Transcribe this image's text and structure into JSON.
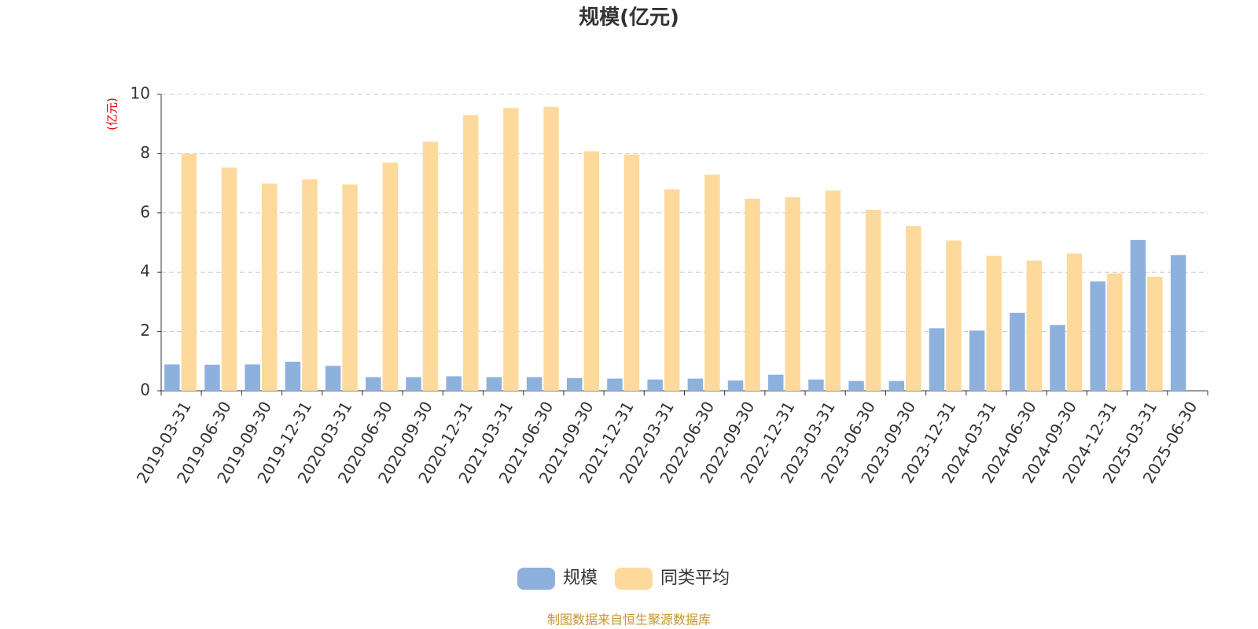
{
  "chart_data": {
    "type": "bar",
    "title": "规模(亿元)",
    "y_axis_label": "(亿元)",
    "source": "制图数据来自恒生聚源数据库",
    "categories": [
      "2019-03-31",
      "2019-06-30",
      "2019-09-30",
      "2019-12-31",
      "2020-03-31",
      "2020-06-30",
      "2020-09-30",
      "2020-12-31",
      "2021-03-31",
      "2021-06-30",
      "2021-09-30",
      "2021-12-31",
      "2022-03-31",
      "2022-06-30",
      "2022-09-30",
      "2022-12-31",
      "2023-03-31",
      "2023-06-30",
      "2023-09-30",
      "2023-12-31",
      "2024-03-31",
      "2024-06-30",
      "2024-09-30",
      "2024-12-31",
      "2025-03-31",
      "2025-06-30"
    ],
    "series": [
      {
        "name": "规模",
        "color": "#8eb0dc",
        "values": [
          0.89,
          0.88,
          0.89,
          0.98,
          0.84,
          0.46,
          0.46,
          0.49,
          0.46,
          0.46,
          0.43,
          0.41,
          0.38,
          0.41,
          0.35,
          0.54,
          0.38,
          0.33,
          0.33,
          2.11,
          2.03,
          2.63,
          2.22,
          3.69,
          5.09,
          4.58
        ]
      },
      {
        "name": "同类平均",
        "color": "#fdd99b",
        "values": [
          7.99,
          7.53,
          6.99,
          7.13,
          6.96,
          7.7,
          8.4,
          9.3,
          9.54,
          9.58,
          8.08,
          7.97,
          6.8,
          7.29,
          6.48,
          6.53,
          6.75,
          6.1,
          5.56,
          5.07,
          4.55,
          4.39,
          4.63,
          3.96,
          3.85,
          null
        ]
      }
    ],
    "ylim": [
      0,
      10
    ],
    "yticks": [
      0,
      2,
      4,
      6,
      8,
      10
    ],
    "grid": true,
    "legend": "bottom"
  }
}
